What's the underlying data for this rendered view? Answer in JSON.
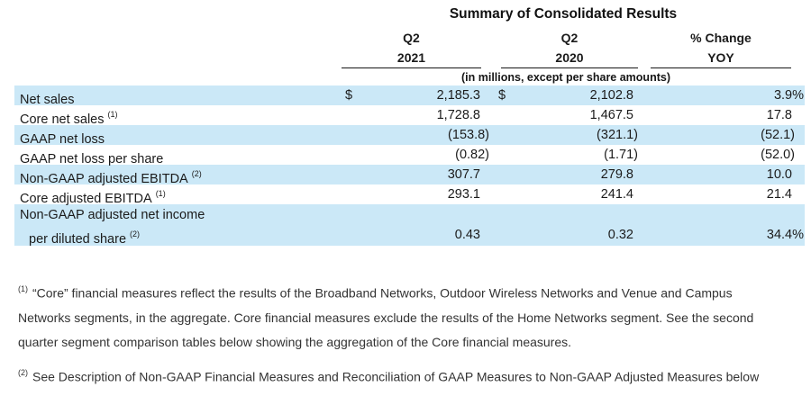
{
  "table": {
    "title": "Summary of Consolidated Results",
    "units_note": "(in millions, except per share amounts)",
    "shading_color": "#cbe8f7",
    "columns": [
      {
        "period": "Q2",
        "year": "2021"
      },
      {
        "period": "Q2",
        "year": "2020"
      },
      {
        "period": "% Change",
        "year": "YOY"
      }
    ],
    "rows": [
      {
        "label": "Net sales",
        "sup": "",
        "cur1": "$",
        "v1": "2,185.3",
        "cur2": "$",
        "v2": "2,102.8",
        "v3": "3.9%"
      },
      {
        "label": "Core net sales",
        "sup": "(1)",
        "cur1": "",
        "v1": "1,728.8",
        "cur2": "",
        "v2": "1,467.5",
        "v3": "17.8"
      },
      {
        "label": "GAAP net loss",
        "sup": "",
        "cur1": "",
        "v1": "(153.8)",
        "cur2": "",
        "v2": "(321.1)",
        "v3": "(52.1)"
      },
      {
        "label": "GAAP net loss per share",
        "sup": "",
        "cur1": "",
        "v1": "(0.82)",
        "cur2": "",
        "v2": "(1.71)",
        "v3": "(52.0)"
      },
      {
        "label": "Non-GAAP adjusted EBITDA",
        "sup": "(2)",
        "cur1": "",
        "v1": "307.7",
        "cur2": "",
        "v2": "279.8",
        "v3": "10.0"
      },
      {
        "label": "Core adjusted EBITDA",
        "sup": "(1)",
        "cur1": "",
        "v1": "293.1",
        "cur2": "",
        "v2": "241.4",
        "v3": "21.4"
      },
      {
        "label": "Non-GAAP adjusted net income",
        "label2": "per diluted share",
        "sup": "(2)",
        "cur1": "",
        "v1": "0.43",
        "cur2": "",
        "v2": "0.32",
        "v3": "34.4%"
      }
    ]
  },
  "footnotes": [
    {
      "marker": "(1)",
      "text": "“Core” financial measures reflect the results of the Broadband Networks, Outdoor Wireless Networks and Venue and Campus Networks segments, in the aggregate. Core financial measures exclude the results of the Home Networks segment. See the second quarter segment comparison tables below showing the aggregation of the Core financial measures."
    },
    {
      "marker": "(2)",
      "text": "See Description of Non-GAAP Financial Measures and Reconciliation of GAAP Measures to Non-GAAP Adjusted Measures below"
    }
  ]
}
